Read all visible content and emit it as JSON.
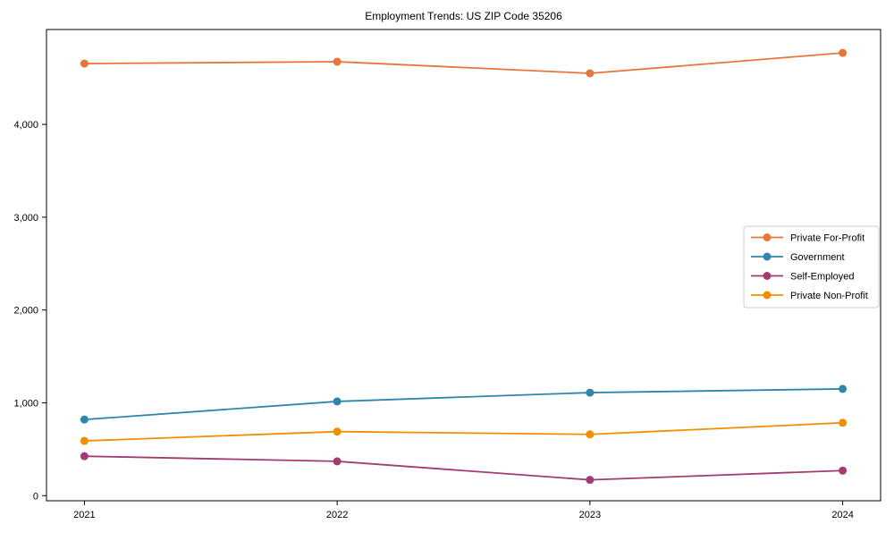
{
  "figure": {
    "background_color": "#ffffff",
    "axis_color": "#000000",
    "legend_border_color": "#cccccc",
    "legend_background": "#ffffff"
  },
  "chart_data": {
    "type": "line",
    "title": "Employment Trends: US ZIP Code 35206",
    "xlabel": "",
    "ylabel": "",
    "grid": false,
    "legend_position": "center-right-inside",
    "x": [
      2021,
      2022,
      2023,
      2024
    ],
    "x_tick_labels": [
      "2021",
      "2022",
      "2023",
      "2024"
    ],
    "y_ticks": [
      0,
      1000,
      2000,
      3000,
      4000
    ],
    "y_tick_labels": [
      "0",
      "1,000",
      "2,000",
      "3,000",
      "4,000"
    ],
    "xlim": [
      2020.85,
      2024.15
    ],
    "ylim": [
      -55,
      5022
    ],
    "series": [
      {
        "name": "Private For-Profit",
        "color": "#E8763C",
        "values": [
          4655,
          4675,
          4550,
          4770
        ]
      },
      {
        "name": "Government",
        "color": "#2E86AB",
        "values": [
          820,
          1015,
          1110,
          1150
        ]
      },
      {
        "name": "Self-Employed",
        "color": "#A23B72",
        "values": [
          425,
          370,
          170,
          270
        ]
      },
      {
        "name": "Private Non-Profit",
        "color": "#F18F01",
        "values": [
          590,
          690,
          660,
          785
        ]
      }
    ]
  }
}
